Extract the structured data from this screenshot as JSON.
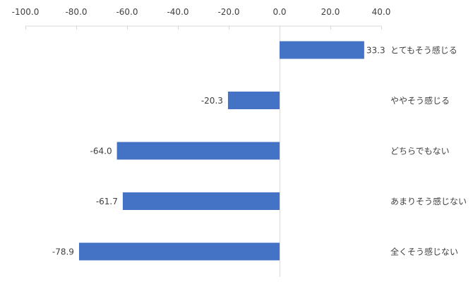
{
  "chart_data": {
    "type": "bar",
    "orientation": "horizontal",
    "title": "",
    "xlabel": "",
    "ylabel": "",
    "xlim": [
      -100,
      40
    ],
    "x_ticks": [
      -100,
      -80,
      -60,
      -40,
      -20,
      0,
      20,
      40
    ],
    "x_tick_labels": [
      "-100.0",
      "-80.0",
      "-60.0",
      "-40.0",
      "-20.0",
      "0.0",
      "20.0",
      "40.0"
    ],
    "axis_position": "top",
    "grid": false,
    "legend": "none",
    "categories": [
      "とてもそう感じる",
      "ややそう感じる",
      "どちらでもない",
      "あまりそう感じない",
      "全くそう感じない"
    ],
    "values": [
      33.3,
      -20.3,
      -64.0,
      -61.7,
      -78.9
    ],
    "value_labels": [
      "33.3",
      "-20.3",
      "-64.0",
      "-61.7",
      "-78.9"
    ],
    "category_label_position": "right",
    "colors": {
      "bar": "#4472c4",
      "axis": "#d9d9d9",
      "text": "#404040"
    }
  }
}
